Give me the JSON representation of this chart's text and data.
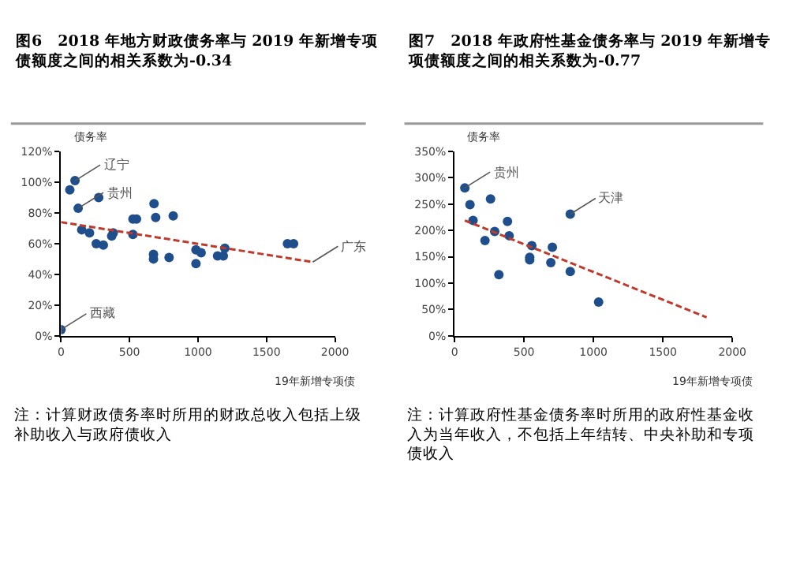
{
  "chart_data": [
    {
      "type": "scatter",
      "title": "图6　2018 年地方财政债务率与 2019 年新增专项债额度之间的相关系数为-0.34",
      "xlabel": "19年新增专项债",
      "ylabel": "债务率",
      "xlim": [
        0,
        2000
      ],
      "xticks": [
        0,
        500,
        1000,
        1500,
        2000
      ],
      "ylim": [
        0,
        120
      ],
      "yticks": [
        {
          "value": 0,
          "label": "0%"
        },
        {
          "value": 20,
          "label": "20%"
        },
        {
          "value": 40,
          "label": "40%"
        },
        {
          "value": 60,
          "label": "60%"
        },
        {
          "value": 80,
          "label": "80%"
        },
        {
          "value": 100,
          "label": "100%"
        },
        {
          "value": 120,
          "label": "120%"
        }
      ],
      "marker": "circle",
      "series": [
        {
          "color": "#1f4e8c",
          "x": [
            64,
            102,
            125,
            151,
            208,
            275,
            257,
            309,
            370,
            381,
            525,
            525,
            551,
            679,
            691,
            819,
            675,
            675,
            789,
            985,
            1023,
            985,
            1143,
            1185,
            1196,
            1653,
            1698,
            0
          ],
          "values": [
            95,
            101,
            83,
            69,
            67,
            90,
            60,
            59,
            65,
            67,
            66,
            76,
            76,
            86,
            77,
            78,
            53,
            50,
            51,
            56,
            54,
            47,
            52,
            52,
            57,
            60,
            60,
            4
          ]
        },
        {
          "type": "line",
          "color": "#c0392b",
          "line_style": "dashed",
          "marker": "none",
          "x": [
            0,
            1838
          ],
          "values": [
            74,
            48
          ]
        }
      ],
      "annotations": [
        {
          "text": "辽宁",
          "x": 102,
          "y": 101
        },
        {
          "text": "贵州",
          "x": 125,
          "y": 83
        },
        {
          "text": "广东",
          "x": 1838,
          "y": 48
        },
        {
          "text": "西藏",
          "x": 0,
          "y": 4
        },
        "注：计算财政债务率时所用的财政总收入包括上级补助收入与政府债收入"
      ]
    },
    {
      "type": "scatter",
      "title": "图7　2018 年政府性基金债务率与 2019 年新增专项债额度之间的相关系数为-0.77",
      "xlabel": "19年新增专项债",
      "ylabel": "债务率",
      "xlim": [
        0,
        2000
      ],
      "xticks": [
        0,
        500,
        1000,
        1500,
        2000
      ],
      "ylim": [
        0,
        350
      ],
      "yticks": [
        {
          "value": 0,
          "label": "0%"
        },
        {
          "value": 50,
          "label": "50%"
        },
        {
          "value": 100,
          "label": "100%"
        },
        {
          "value": 150,
          "label": "150%"
        },
        {
          "value": 200,
          "label": "200%"
        },
        {
          "value": 250,
          "label": "250%"
        },
        {
          "value": 300,
          "label": "300%"
        },
        {
          "value": 350,
          "label": "350%"
        }
      ],
      "marker": "circle",
      "series": [
        {
          "color": "#1f4e8c",
          "x": [
            74,
            111,
            133,
            259,
            219,
            289,
            381,
            393,
            556,
            541,
            541,
            704,
            693,
            833,
            833,
            319,
            1037
          ],
          "values": [
            281,
            249,
            219,
            260,
            181,
            198,
            217,
            190,
            171,
            149,
            144,
            168,
            139,
            231,
            122,
            116,
            64
          ]
        },
        {
          "type": "line",
          "color": "#c0392b",
          "line_style": "dashed",
          "marker": "none",
          "x": [
            74,
            1815
          ],
          "values": [
            219,
            35
          ]
        }
      ],
      "annotations": [
        {
          "text": "贵州",
          "x": 74,
          "y": 281
        },
        {
          "text": "天津",
          "x": 833,
          "y": 231
        },
        "注：计算政府性基金债务率时所用的政府性基金收入为当年收入，不包括上年结转、中央补助和专项债收入"
      ]
    }
  ]
}
